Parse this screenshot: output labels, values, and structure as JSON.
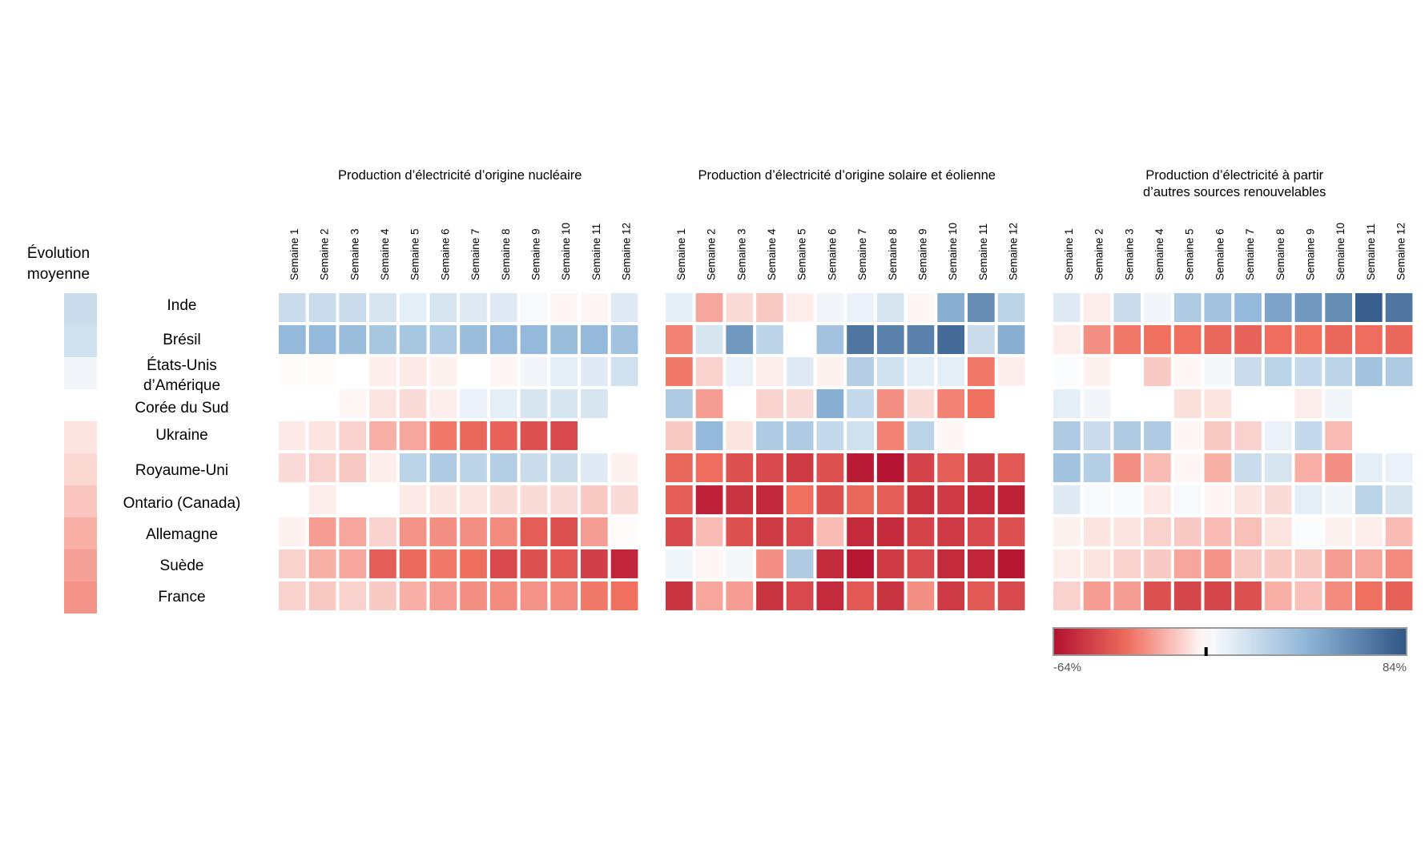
{
  "chart_data": {
    "type": "heatmap",
    "title": "",
    "legend_title": [
      "Évolution",
      "moyenne"
    ],
    "color_scale": {
      "min_label": "-64%",
      "max_label": "84%",
      "min": -64,
      "max": 84,
      "marker": 0,
      "colors": {
        "negative_strong": "#b2102f",
        "negative_mid": "#f07060",
        "neutral": "#ffffff",
        "positive_mid": "#8fb6d8",
        "positive_strong": "#2f5685"
      }
    },
    "weeks": [
      "Semaine 1",
      "Semaine 2",
      "Semaine 3",
      "Semaine 4",
      "Semaine 5",
      "Semaine 6",
      "Semaine 7",
      "Semaine 8",
      "Semaine 9",
      "Semaine 10",
      "Semaine 11",
      "Semaine 12"
    ],
    "countries": [
      {
        "label": [
          "Inde"
        ],
        "average": 20
      },
      {
        "label": [
          "Brésil"
        ],
        "average": 18
      },
      {
        "label": [
          "États-Unis",
          "d’Amérique"
        ],
        "average": 5
      },
      {
        "label": [
          "Corée du Sud"
        ],
        "average": 0
      },
      {
        "label": [
          "Ukraine"
        ],
        "average": -6
      },
      {
        "label": [
          "Royaume-Uni"
        ],
        "average": -9
      },
      {
        "label": [
          "Ontario (Canada)"
        ],
        "average": -13
      },
      {
        "label": [
          "Allemagne"
        ],
        "average": -18
      },
      {
        "label": [
          "Suède"
        ],
        "average": -21
      },
      {
        "label": [
          "France"
        ],
        "average": -24
      }
    ],
    "panels": [
      {
        "title": [
          "Production d’électricité d’origine nucléaire"
        ],
        "values": [
          [
            20,
            20,
            20,
            15,
            10,
            15,
            12,
            12,
            3,
            -2,
            -2,
            12
          ],
          [
            40,
            40,
            38,
            33,
            33,
            30,
            38,
            40,
            40,
            38,
            40,
            35
          ],
          [
            -1,
            -1,
            0,
            -4,
            -5,
            -3,
            0,
            -2,
            5,
            10,
            12,
            18
          ],
          [
            null,
            null,
            -2,
            -6,
            -8,
            -4,
            8,
            10,
            15,
            15,
            15,
            null
          ],
          [
            -5,
            -6,
            -10,
            -18,
            -20,
            -30,
            -35,
            -36,
            -42,
            -45,
            null,
            null
          ],
          [
            -8,
            -10,
            -12,
            -4,
            25,
            30,
            25,
            28,
            20,
            20,
            12,
            -3
          ],
          [
            null,
            -4,
            0,
            0,
            -5,
            -6,
            -6,
            -8,
            -8,
            -8,
            -12,
            -8
          ],
          [
            -3,
            -22,
            -20,
            -10,
            -24,
            -25,
            -25,
            -26,
            -38,
            -42,
            -22,
            -1
          ],
          [
            -10,
            -18,
            -20,
            -38,
            -34,
            -30,
            -33,
            -45,
            -42,
            -40,
            -48,
            -57
          ],
          [
            -10,
            -12,
            -10,
            -12,
            -18,
            -22,
            -25,
            -26,
            -24,
            -26,
            -30,
            -32
          ]
        ]
      },
      {
        "title": [
          "Production d’électricité d’origine solaire et éolienne"
        ],
        "values": [
          [
            10,
            -20,
            -8,
            -12,
            -4,
            5,
            8,
            15,
            -2,
            45,
            60,
            25
          ],
          [
            -28,
            15,
            55,
            25,
            0,
            35,
            70,
            65,
            65,
            75,
            20,
            45
          ],
          [
            -30,
            -10,
            8,
            -4,
            12,
            -3,
            28,
            18,
            10,
            10,
            -30,
            -4
          ],
          [
            30,
            -22,
            0,
            -10,
            -8,
            45,
            22,
            -25,
            -8,
            -28,
            -32,
            null
          ],
          [
            -12,
            40,
            -6,
            30,
            30,
            22,
            18,
            -28,
            25,
            -2,
            null,
            null
          ],
          [
            -35,
            -33,
            -42,
            -45,
            -50,
            -42,
            -60,
            -63,
            -47,
            -38,
            -48,
            -40
          ],
          [
            -38,
            -58,
            -52,
            -56,
            -32,
            -42,
            -35,
            -38,
            -52,
            -50,
            -55,
            -58
          ],
          [
            -45,
            -15,
            -42,
            -50,
            -45,
            -15,
            -55,
            -55,
            -47,
            -50,
            -45,
            -42
          ],
          [
            6,
            -2,
            4,
            -25,
            30,
            -55,
            -62,
            -50,
            -45,
            -55,
            -57,
            -62
          ],
          [
            -52,
            -20,
            -22,
            -52,
            -45,
            -55,
            -40,
            -52,
            -25,
            -50,
            -40,
            -45
          ]
        ]
      },
      {
        "title": [
          "Production d’électricité à partir",
          "d’autres sources renouvelables"
        ],
        "values": [
          [
            12,
            -4,
            20,
            5,
            30,
            35,
            40,
            50,
            55,
            60,
            80,
            70
          ],
          [
            -4,
            -25,
            -30,
            -32,
            -32,
            -35,
            -36,
            -33,
            -32,
            -35,
            -33,
            -35
          ],
          [
            2,
            -3,
            0,
            -12,
            -2,
            4,
            20,
            25,
            22,
            25,
            35,
            30
          ],
          [
            10,
            5,
            0,
            0,
            -7,
            -6,
            0,
            0,
            -4,
            5,
            null,
            null
          ],
          [
            30,
            20,
            30,
            30,
            -2,
            -12,
            -10,
            8,
            22,
            -15,
            null,
            null
          ],
          [
            35,
            28,
            -25,
            -15,
            -2,
            -18,
            20,
            15,
            -18,
            -25,
            10,
            8
          ],
          [
            12,
            3,
            3,
            -5,
            3,
            -2,
            -6,
            -8,
            10,
            6,
            25,
            15
          ],
          [
            -3,
            -6,
            -6,
            -10,
            -12,
            -15,
            -14,
            -6,
            2,
            -3,
            -4,
            -15
          ],
          [
            -4,
            -6,
            -10,
            -12,
            -20,
            -24,
            -12,
            -12,
            -12,
            -22,
            -20,
            -26
          ],
          [
            -10,
            -22,
            -22,
            -42,
            -46,
            -46,
            -42,
            -18,
            -14,
            -26,
            -32,
            -37
          ]
        ]
      }
    ]
  }
}
